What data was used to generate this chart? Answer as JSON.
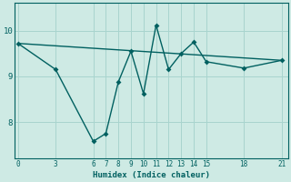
{
  "xlabel": "Humidex (Indice chaleur)",
  "bg_color": "#ceeae4",
  "line_color": "#006060",
  "grid_color": "#a8d4ce",
  "line1_x": [
    0,
    3,
    6,
    7,
    8,
    9,
    10,
    11,
    12,
    13,
    14,
    15,
    18,
    21
  ],
  "line1_y": [
    9.72,
    9.15,
    7.58,
    7.75,
    8.88,
    9.55,
    8.62,
    10.12,
    9.15,
    9.5,
    9.75,
    9.32,
    9.18,
    9.35
  ],
  "line2_x": [
    0,
    21
  ],
  "line2_y": [
    9.72,
    9.35
  ],
  "xticks": [
    0,
    3,
    6,
    7,
    8,
    9,
    10,
    11,
    12,
    13,
    14,
    15,
    18,
    21
  ],
  "yticks": [
    8,
    9,
    10
  ],
  "ylim": [
    7.2,
    10.6
  ],
  "xlim": [
    -0.3,
    21.5
  ]
}
